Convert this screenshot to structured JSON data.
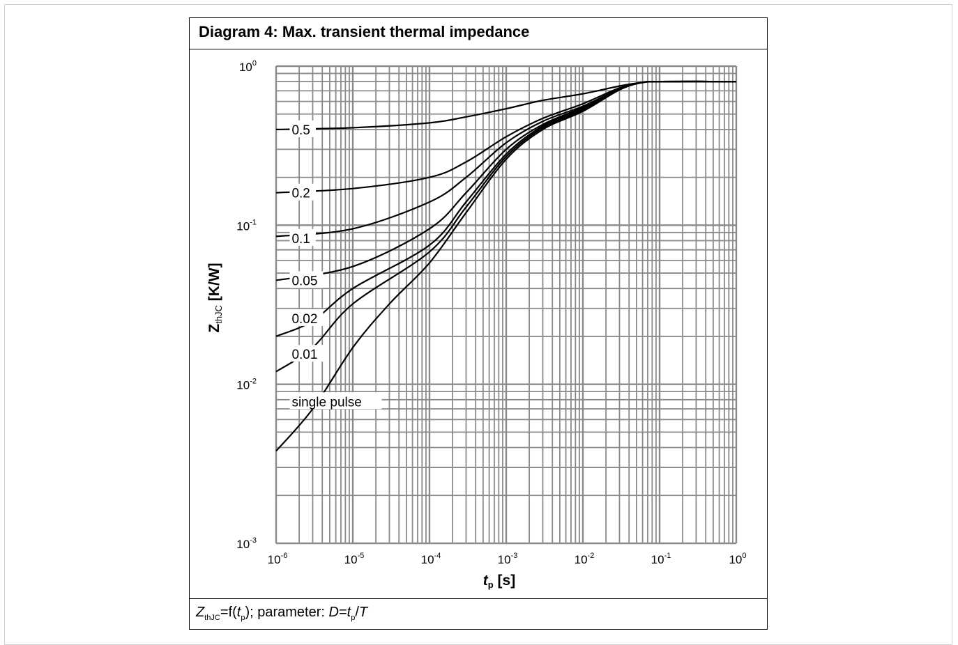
{
  "diagram": {
    "title": "Diagram 4: Max. transient thermal impedance",
    "footer": {
      "z": "Z",
      "z_sub": "thJC",
      "eq": "=f(",
      "t": "t",
      "t_sub": "p",
      "mid": "); parameter: ",
      "d": "D",
      "eq2": "=",
      "t2": "t",
      "t2_sub": "p",
      "slash": "/",
      "T": "T"
    }
  },
  "chart_data": {
    "type": "line",
    "xscale": "log",
    "yscale": "log",
    "xlim": [
      1e-06,
      1
    ],
    "ylim": [
      0.001,
      1
    ],
    "grid": true,
    "xlabel": {
      "main": "t",
      "sub": "p",
      "unit": " [s]"
    },
    "ylabel": {
      "main": "Z",
      "sub": "thJC",
      "unit": " [K/W]"
    },
    "xticks": [
      {
        "base": "10",
        "exp": "-6"
      },
      {
        "base": "10",
        "exp": "-5"
      },
      {
        "base": "10",
        "exp": "-4"
      },
      {
        "base": "10",
        "exp": "-3"
      },
      {
        "base": "10",
        "exp": "-2"
      },
      {
        "base": "10",
        "exp": "-1"
      },
      {
        "base": "10",
        "exp": "0"
      }
    ],
    "yticks": [
      {
        "base": "10",
        "exp": "-3"
      },
      {
        "base": "10",
        "exp": "-2"
      },
      {
        "base": "10",
        "exp": "-1"
      },
      {
        "base": "10",
        "exp": "0"
      }
    ],
    "series": [
      {
        "name": "0.5",
        "points": [
          [
            1e-06,
            0.4
          ],
          [
            1e-05,
            0.41
          ],
          [
            0.0001,
            0.44
          ],
          [
            0.0003,
            0.48
          ],
          [
            0.001,
            0.54
          ],
          [
            0.003,
            0.61
          ],
          [
            0.01,
            0.67
          ],
          [
            0.03,
            0.75
          ],
          [
            0.06,
            0.79
          ],
          [
            0.1,
            0.8
          ],
          [
            1,
            0.8
          ]
        ]
      },
      {
        "name": "0.2",
        "points": [
          [
            1e-06,
            0.16
          ],
          [
            1e-05,
            0.17
          ],
          [
            0.0001,
            0.2
          ],
          [
            0.0003,
            0.25
          ],
          [
            0.001,
            0.36
          ],
          [
            0.003,
            0.47
          ],
          [
            0.01,
            0.58
          ],
          [
            0.03,
            0.73
          ],
          [
            0.06,
            0.79
          ],
          [
            0.1,
            0.8
          ],
          [
            1,
            0.8
          ]
        ]
      },
      {
        "name": "0.1",
        "points": [
          [
            1e-06,
            0.085
          ],
          [
            1e-05,
            0.095
          ],
          [
            0.0001,
            0.14
          ],
          [
            0.0003,
            0.2
          ],
          [
            0.001,
            0.33
          ],
          [
            0.003,
            0.45
          ],
          [
            0.01,
            0.56
          ],
          [
            0.03,
            0.72
          ],
          [
            0.06,
            0.79
          ],
          [
            0.1,
            0.8
          ],
          [
            1,
            0.8
          ]
        ]
      },
      {
        "name": "0.05",
        "points": [
          [
            1e-06,
            0.045
          ],
          [
            1e-05,
            0.055
          ],
          [
            0.0001,
            0.095
          ],
          [
            0.0003,
            0.16
          ],
          [
            0.001,
            0.3
          ],
          [
            0.003,
            0.43
          ],
          [
            0.01,
            0.55
          ],
          [
            0.03,
            0.72
          ],
          [
            0.06,
            0.79
          ],
          [
            0.1,
            0.8
          ],
          [
            1,
            0.8
          ]
        ]
      },
      {
        "name": "0.02",
        "points": [
          [
            1e-06,
            0.02
          ],
          [
            3e-06,
            0.025
          ],
          [
            1e-05,
            0.04
          ],
          [
            0.0001,
            0.075
          ],
          [
            0.0003,
            0.14
          ],
          [
            0.001,
            0.28
          ],
          [
            0.003,
            0.42
          ],
          [
            0.01,
            0.54
          ],
          [
            0.03,
            0.72
          ],
          [
            0.06,
            0.79
          ],
          [
            0.1,
            0.8
          ],
          [
            1,
            0.8
          ]
        ]
      },
      {
        "name": "0.01",
        "points": [
          [
            1e-06,
            0.012
          ],
          [
            3e-06,
            0.017
          ],
          [
            1e-05,
            0.032
          ],
          [
            0.0001,
            0.068
          ],
          [
            0.0003,
            0.13
          ],
          [
            0.001,
            0.27
          ],
          [
            0.003,
            0.41
          ],
          [
            0.01,
            0.53
          ],
          [
            0.03,
            0.72
          ],
          [
            0.06,
            0.79
          ],
          [
            0.1,
            0.8
          ],
          [
            1,
            0.8
          ]
        ]
      },
      {
        "name": "single pulse",
        "points": [
          [
            1e-06,
            0.0038
          ],
          [
            3e-06,
            0.007
          ],
          [
            1e-05,
            0.017
          ],
          [
            3e-05,
            0.032
          ],
          [
            0.0001,
            0.058
          ],
          [
            0.0003,
            0.12
          ],
          [
            0.001,
            0.26
          ],
          [
            0.003,
            0.4
          ],
          [
            0.01,
            0.52
          ],
          [
            0.03,
            0.71
          ],
          [
            0.06,
            0.79
          ],
          [
            0.1,
            0.8
          ],
          [
            1,
            0.8
          ]
        ]
      }
    ]
  }
}
